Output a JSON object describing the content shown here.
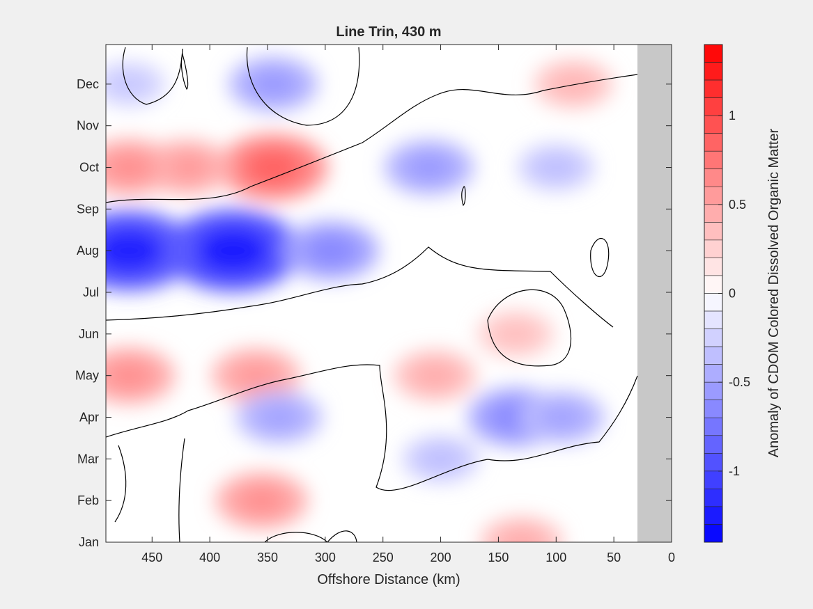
{
  "chart_data": {
    "type": "heatmap",
    "title": "Line Trin, 430 m",
    "xlabel": "Offshore Distance (km)",
    "ylabel": "",
    "colorbar_label": "Anomaly of CDOM Colored Dissolved Organic Matter",
    "x_reversed": true,
    "xlim": [
      0,
      490
    ],
    "x_ticks": [
      450,
      400,
      350,
      300,
      250,
      200,
      150,
      100,
      50,
      0
    ],
    "y_ticks": [
      "Jan",
      "Feb",
      "Mar",
      "Apr",
      "May",
      "Jun",
      "Jul",
      "Aug",
      "Sep",
      "Oct",
      "Nov",
      "Dec"
    ],
    "colorbar_ticks": [
      1,
      0.5,
      0,
      -0.5,
      -1
    ],
    "colorbar_range": [
      -1.4,
      1.4
    ],
    "colorbar_levels": 28,
    "contour_level": 0,
    "no_data_region_km": [
      0,
      30
    ],
    "colors": {
      "positive_max": "#ff0000",
      "negative_max": "#0000ff",
      "zero": "#ffffff",
      "no_data": "#c8c8c8",
      "contour": "#000000"
    },
    "anomaly_features": [
      {
        "x": 345,
        "month": "Oct",
        "value": 0.85
      },
      {
        "x": 420,
        "month": "Oct",
        "value": 0.55
      },
      {
        "x": 470,
        "month": "Oct",
        "value": 0.6
      },
      {
        "x": 380,
        "month": "Aug",
        "value": -1.25
      },
      {
        "x": 470,
        "month": "Aug",
        "value": -1.2
      },
      {
        "x": 295,
        "month": "Aug",
        "value": -0.65
      },
      {
        "x": 210,
        "month": "Oct",
        "value": -0.55
      },
      {
        "x": 345,
        "month": "Dec",
        "value": -0.55
      },
      {
        "x": 470,
        "month": "May",
        "value": 0.6
      },
      {
        "x": 360,
        "month": "May",
        "value": 0.55
      },
      {
        "x": 205,
        "month": "May",
        "value": 0.45
      },
      {
        "x": 135,
        "month": "Jun",
        "value": 0.35
      },
      {
        "x": 340,
        "month": "Apr",
        "value": -0.5
      },
      {
        "x": 135,
        "month": "Apr",
        "value": -0.65
      },
      {
        "x": 95,
        "month": "Apr",
        "value": -0.5
      },
      {
        "x": 200,
        "month": "Mar",
        "value": -0.35
      },
      {
        "x": 355,
        "month": "Feb",
        "value": 0.6
      },
      {
        "x": 130,
        "month": "Jan",
        "value": 0.45
      },
      {
        "x": 85,
        "month": "Dec",
        "value": 0.4
      },
      {
        "x": 470,
        "month": "Dec",
        "value": -0.3
      },
      {
        "x": 100,
        "month": "Oct",
        "value": -0.35
      }
    ]
  }
}
